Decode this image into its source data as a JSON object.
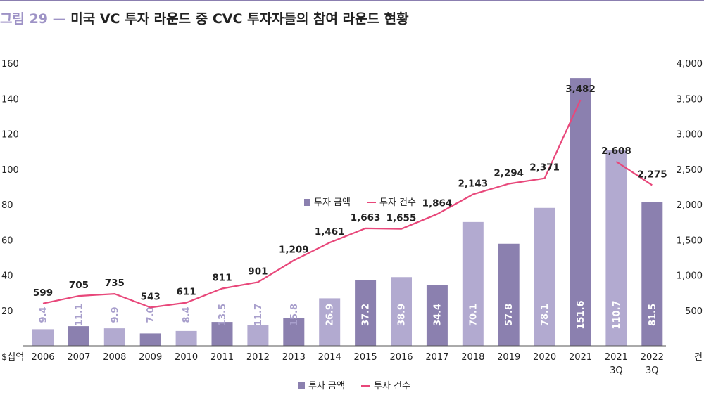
{
  "header": {
    "figure_number": "그림 29",
    "dash": "—",
    "title": "미국 VC 투자 라운드 중 CVC 투자자들의 참여 라운드 현황"
  },
  "colors": {
    "bar_dark": "#8b80af",
    "bar_light": "#b2aad0",
    "line": "#e8477a",
    "label_light": "#a89fcc",
    "axis": "#555555",
    "title_accent": "#9e93c6"
  },
  "chart_data": {
    "type": "bar",
    "title": "미국 VC 투자 라운드 중 CVC 투자자들의 참여 라운드 현황",
    "categories": [
      "2006",
      "2007",
      "2008",
      "2009",
      "2010",
      "2011",
      "2012",
      "2013",
      "2014",
      "2015",
      "2016",
      "2017",
      "2018",
      "2019",
      "2020",
      "2021",
      "2021 3Q",
      "2022 3Q"
    ],
    "x_labels": [
      [
        "2006"
      ],
      [
        "2007"
      ],
      [
        "2008"
      ],
      [
        "2009"
      ],
      [
        "2010"
      ],
      [
        "2011"
      ],
      [
        "2012"
      ],
      [
        "2013"
      ],
      [
        "2014"
      ],
      [
        "2015"
      ],
      [
        "2016"
      ],
      [
        "2017"
      ],
      [
        "2018"
      ],
      [
        "2019"
      ],
      [
        "2020"
      ],
      [
        "2021"
      ],
      [
        "2021",
        "3Q"
      ],
      [
        "2022",
        "3Q"
      ]
    ],
    "series": [
      {
        "name": "투자 금액",
        "kind": "bar",
        "axis": "left",
        "values": [
          9.4,
          11.1,
          9.9,
          7.0,
          8.4,
          13.5,
          11.7,
          15.8,
          26.9,
          37.2,
          38.9,
          34.4,
          70.1,
          57.8,
          78.1,
          151.6,
          110.7,
          81.5
        ],
        "value_labels": [
          "9.4",
          "11.1",
          "9.9",
          "7.0",
          "8.4",
          "13.5",
          "11.7",
          "15.8",
          "26.9",
          "37.2",
          "38.9",
          "34.4",
          "70.1",
          "57.8",
          "78.1",
          "151.6",
          "110.7",
          "81.5"
        ],
        "shade": [
          "light",
          "dark",
          "light",
          "dark",
          "light",
          "dark",
          "light",
          "dark",
          "light",
          "dark",
          "light",
          "dark",
          "light",
          "dark",
          "light",
          "dark",
          "light",
          "dark"
        ]
      },
      {
        "name": "투자 건수",
        "kind": "line",
        "axis": "right",
        "values": [
          599,
          705,
          735,
          543,
          611,
          811,
          901,
          1209,
          1461,
          1663,
          1655,
          1864,
          2143,
          2294,
          2371,
          3482,
          2608,
          2275
        ],
        "value_labels": [
          "599",
          "705",
          "735",
          "543",
          "611",
          "811",
          "901",
          "1,209",
          "1,461",
          "1,663",
          "1,655",
          "1,864",
          "2,143",
          "2,294",
          "2,371",
          "3,482",
          "2,608",
          "2,275"
        ],
        "segments": [
          [
            0,
            15
          ],
          [
            16,
            17
          ]
        ]
      }
    ],
    "y_left": {
      "label": "$십억",
      "ylim": [
        0,
        160
      ],
      "ticks": [
        "20",
        "40",
        "60",
        "80",
        "100",
        "120",
        "140",
        "160"
      ],
      "tick_values": [
        20,
        40,
        60,
        80,
        100,
        120,
        140,
        160
      ]
    },
    "y_right": {
      "label": "건",
      "ylim": [
        0,
        4000
      ],
      "ticks": [
        "500",
        "1,000",
        "1,500",
        "2,000",
        "2,500",
        "3,000",
        "3,500",
        "4,000"
      ],
      "tick_values": [
        500,
        1000,
        1500,
        2000,
        2500,
        3000,
        3500,
        4000
      ]
    },
    "legend": {
      "placement": "center",
      "items": [
        {
          "name": "투자 금액",
          "kind": "bar"
        },
        {
          "name": "투자 건수",
          "kind": "line"
        }
      ]
    },
    "bottom_legend": {
      "placement": "bottom",
      "items": [
        {
          "name": "투자 금액",
          "kind": "bar"
        },
        {
          "name": "투자 건수",
          "kind": "line"
        }
      ]
    },
    "grid": false
  }
}
